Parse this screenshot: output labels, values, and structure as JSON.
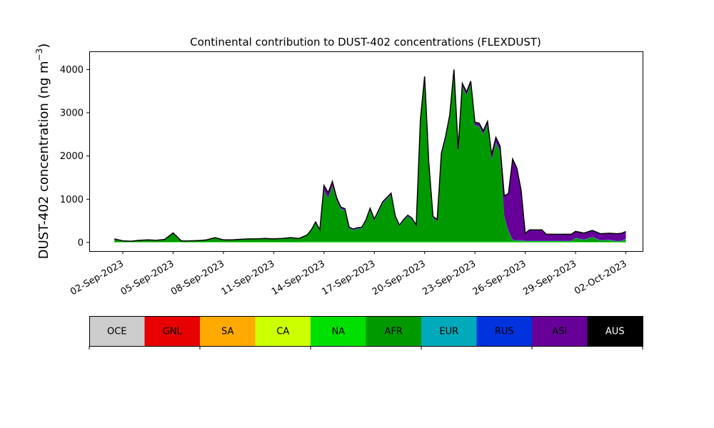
{
  "chart_data": {
    "type": "area",
    "stacked": true,
    "title": "Continental contribution to DUST-402 concentrations (FLEXDUST)",
    "ylabel_main": "DUST-402 concentration (ng m",
    "ylabel_sup": "−3",
    "ylabel_close": ")",
    "xlim": [
      "2023-08-31",
      "2023-10-03"
    ],
    "ylim": [
      -200,
      4420
    ],
    "yticks": [
      0,
      1000,
      2000,
      3000,
      4000
    ],
    "xtick_labels": [
      "02-Sep-2023",
      "05-Sep-2023",
      "08-Sep-2023",
      "11-Sep-2023",
      "14-Sep-2023",
      "17-Sep-2023",
      "20-Sep-2023",
      "23-Sep-2023",
      "26-Sep-2023",
      "29-Sep-2023",
      "02-Oct-2023"
    ],
    "xtick_dates": [
      "2023-09-02",
      "2023-09-05",
      "2023-09-08",
      "2023-09-11",
      "2023-09-14",
      "2023-09-17",
      "2023-09-20",
      "2023-09-23",
      "2023-09-26",
      "2023-09-29",
      "2023-10-02"
    ],
    "x": [
      "2023-09-01 12:00",
      "2023-09-02 00:00",
      "2023-09-02 12:00",
      "2023-09-03 00:00",
      "2023-09-03 12:00",
      "2023-09-04 00:00",
      "2023-09-04 12:00",
      "2023-09-05 00:00",
      "2023-09-05 12:00",
      "2023-09-06 00:00",
      "2023-09-06 09:00",
      "2023-09-06 18:00",
      "2023-09-07 00:00",
      "2023-09-07 12:00",
      "2023-09-08 00:00",
      "2023-09-08 12:00",
      "2023-09-09 00:00",
      "2023-09-09 12:00",
      "2023-09-10 00:00",
      "2023-09-10 12:00",
      "2023-09-11 00:00",
      "2023-09-11 12:00",
      "2023-09-12 00:00",
      "2023-09-12 12:00",
      "2023-09-13 00:00",
      "2023-09-13 06:00",
      "2023-09-13 12:00",
      "2023-09-13 18:00",
      "2023-09-14 00:00",
      "2023-09-14 06:00",
      "2023-09-14 12:00",
      "2023-09-14 18:00",
      "2023-09-15 00:00",
      "2023-09-15 06:00",
      "2023-09-15 12:00",
      "2023-09-15 18:00",
      "2023-09-16 00:00",
      "2023-09-16 06:00",
      "2023-09-16 12:00",
      "2023-09-16 18:00",
      "2023-09-17 00:00",
      "2023-09-17 12:00",
      "2023-09-18 00:00",
      "2023-09-18 06:00",
      "2023-09-18 12:00",
      "2023-09-18 18:00",
      "2023-09-19 00:00",
      "2023-09-19 06:00",
      "2023-09-19 12:00",
      "2023-09-19 18:00",
      "2023-09-20 00:00",
      "2023-09-20 06:00",
      "2023-09-20 12:00",
      "2023-09-20 18:00",
      "2023-09-21 00:00",
      "2023-09-21 06:00",
      "2023-09-21 12:00",
      "2023-09-21 18:00",
      "2023-09-22 00:00",
      "2023-09-22 06:00",
      "2023-09-22 12:00",
      "2023-09-22 18:00",
      "2023-09-23 00:00",
      "2023-09-23 06:00",
      "2023-09-23 12:00",
      "2023-09-23 18:00",
      "2023-09-24 00:00",
      "2023-09-24 06:00",
      "2023-09-24 12:00",
      "2023-09-24 18:00",
      "2023-09-25 00:00",
      "2023-09-25 06:00",
      "2023-09-25 12:00",
      "2023-09-25 18:00",
      "2023-09-26 00:00",
      "2023-09-26 06:00",
      "2023-09-26 12:00",
      "2023-09-26 18:00",
      "2023-09-27 00:00",
      "2023-09-27 06:00",
      "2023-09-27 12:00",
      "2023-09-27 18:00",
      "2023-09-28 00:00",
      "2023-09-28 06:00",
      "2023-09-28 12:00",
      "2023-09-28 18:00",
      "2023-09-29 00:00",
      "2023-09-29 12:00",
      "2023-09-30 00:00",
      "2023-09-30 12:00",
      "2023-10-01 00:00",
      "2023-10-01 12:00",
      "2023-10-01 18:00",
      "2023-10-02 00:00"
    ],
    "series": [
      {
        "name": "OCE",
        "color": "#cccccc",
        "values": [
          0,
          0,
          0,
          0,
          0,
          0,
          0,
          0,
          0,
          0,
          0,
          0,
          0,
          0,
          0,
          0,
          0,
          0,
          0,
          0,
          0,
          0,
          0,
          0,
          0,
          0,
          0,
          0,
          0,
          0,
          0,
          0,
          0,
          0,
          0,
          0,
          0,
          0,
          0,
          0,
          0,
          0,
          0,
          0,
          0,
          0,
          0,
          0,
          0,
          0,
          0,
          0,
          0,
          0,
          0,
          0,
          0,
          0,
          0,
          0,
          0,
          0,
          0,
          0,
          0,
          0,
          0,
          0,
          0,
          0,
          0,
          0,
          0,
          0,
          0,
          0,
          0,
          0,
          0,
          0,
          0,
          0,
          0,
          0,
          0,
          0,
          0,
          0,
          0,
          0,
          0,
          0,
          0,
          0
        ]
      },
      {
        "name": "GNL",
        "color": "#e60000",
        "values": [
          0,
          0,
          0,
          0,
          0,
          0,
          0,
          0,
          0,
          0,
          0,
          0,
          0,
          0,
          0,
          0,
          0,
          0,
          0,
          0,
          0,
          0,
          0,
          0,
          0,
          0,
          0,
          0,
          0,
          0,
          0,
          0,
          0,
          0,
          0,
          0,
          0,
          0,
          0,
          0,
          0,
          0,
          0,
          0,
          0,
          0,
          0,
          0,
          0,
          0,
          0,
          0,
          0,
          0,
          0,
          0,
          0,
          0,
          0,
          0,
          0,
          0,
          0,
          0,
          0,
          0,
          0,
          0,
          0,
          0,
          0,
          0,
          0,
          0,
          0,
          0,
          0,
          0,
          0,
          0,
          0,
          0,
          0,
          0,
          0,
          0,
          0,
          0,
          0,
          0,
          0,
          0,
          0,
          0
        ]
      },
      {
        "name": "SA",
        "color": "#ffaa00",
        "values": [
          0,
          0,
          0,
          0,
          0,
          0,
          0,
          0,
          0,
          0,
          0,
          0,
          0,
          0,
          0,
          0,
          0,
          0,
          0,
          0,
          0,
          0,
          0,
          0,
          0,
          0,
          0,
          0,
          0,
          0,
          0,
          0,
          0,
          0,
          0,
          0,
          0,
          0,
          0,
          0,
          0,
          0,
          0,
          0,
          0,
          0,
          0,
          0,
          0,
          0,
          0,
          0,
          0,
          0,
          0,
          0,
          0,
          0,
          0,
          0,
          0,
          0,
          0,
          0,
          0,
          0,
          0,
          0,
          0,
          0,
          0,
          0,
          0,
          0,
          0,
          0,
          0,
          0,
          0,
          0,
          0,
          0,
          0,
          0,
          0,
          0,
          0,
          0,
          0,
          0,
          0,
          0,
          0,
          0
        ]
      },
      {
        "name": "CA",
        "color": "#ccff00",
        "values": [
          3,
          3,
          3,
          3,
          3,
          3,
          3,
          3,
          3,
          3,
          3,
          3,
          3,
          3,
          3,
          3,
          3,
          3,
          3,
          3,
          3,
          3,
          3,
          3,
          3,
          3,
          3,
          3,
          3,
          3,
          3,
          3,
          3,
          3,
          3,
          3,
          3,
          3,
          3,
          3,
          3,
          3,
          3,
          3,
          3,
          3,
          3,
          3,
          3,
          3,
          3,
          3,
          3,
          3,
          3,
          3,
          3,
          3,
          3,
          3,
          3,
          3,
          3,
          3,
          3,
          3,
          3,
          3,
          3,
          3,
          3,
          3,
          3,
          3,
          3,
          3,
          3,
          3,
          3,
          3,
          3,
          3,
          3,
          3,
          3,
          3,
          3,
          3,
          3,
          3,
          3,
          3,
          3,
          3
        ]
      },
      {
        "name": "NA",
        "color": "#00e000",
        "values": [
          12,
          10,
          8,
          10,
          10,
          10,
          10,
          10,
          10,
          12,
          12,
          10,
          10,
          10,
          10,
          10,
          12,
          12,
          12,
          12,
          12,
          12,
          12,
          12,
          15,
          15,
          15,
          15,
          15,
          15,
          15,
          15,
          15,
          15,
          15,
          15,
          15,
          15,
          15,
          15,
          15,
          15,
          15,
          15,
          15,
          15,
          15,
          15,
          15,
          15,
          15,
          15,
          15,
          15,
          15,
          15,
          15,
          15,
          15,
          15,
          15,
          15,
          15,
          15,
          15,
          15,
          15,
          15,
          15,
          15,
          15,
          15,
          15,
          15,
          15,
          15,
          15,
          15,
          15,
          15,
          15,
          15,
          15,
          15,
          15,
          15,
          12,
          12,
          12,
          12,
          12,
          12,
          12,
          12
        ]
      },
      {
        "name": "AFR",
        "color": "#009900",
        "values": [
          55,
          15,
          7,
          27,
          37,
          27,
          47,
          197,
          12,
          12,
          17,
          27,
          37,
          87,
          37,
          37,
          47,
          57,
          57,
          67,
          57,
          67,
          87,
          67,
          147,
          267,
          427,
          242,
          1162,
          1002,
          1282,
          952,
          752,
          722,
          302,
          262,
          292,
          302,
          462,
          732,
          482,
          882,
          1082,
          552,
          352,
          482,
          582,
          512,
          352,
          2782,
          3782,
          1782,
          542,
          472,
          1982,
          2352,
          2852,
          3902,
          2082,
          3582,
          3382,
          3632,
          2682,
          2662,
          2482,
          2702,
          1882,
          2282,
          2082,
          582,
          232,
          32,
          22,
          22,
          12,
          12,
          12,
          12,
          12,
          12,
          12,
          12,
          12,
          12,
          12,
          12,
          82,
          42,
          102,
          27,
          37,
          7,
          17,
          57
        ]
      },
      {
        "name": "EUR",
        "color": "#00aabb",
        "values": [
          5,
          5,
          5,
          5,
          5,
          5,
          5,
          5,
          5,
          5,
          5,
          5,
          5,
          5,
          5,
          5,
          5,
          5,
          5,
          5,
          5,
          5,
          5,
          5,
          5,
          5,
          5,
          5,
          5,
          5,
          5,
          5,
          5,
          5,
          5,
          5,
          5,
          5,
          5,
          5,
          5,
          5,
          5,
          5,
          5,
          5,
          5,
          5,
          5,
          5,
          5,
          5,
          5,
          5,
          5,
          5,
          5,
          5,
          5,
          5,
          5,
          5,
          5,
          5,
          5,
          5,
          5,
          5,
          5,
          5,
          5,
          5,
          5,
          5,
          5,
          5,
          5,
          5,
          5,
          5,
          5,
          5,
          5,
          5,
          5,
          5,
          5,
          5,
          5,
          5,
          5,
          5,
          5,
          5
        ]
      },
      {
        "name": "RUS",
        "color": "#0033dd",
        "values": [
          5,
          5,
          5,
          5,
          5,
          5,
          5,
          5,
          5,
          5,
          5,
          5,
          5,
          5,
          5,
          5,
          5,
          5,
          5,
          5,
          5,
          5,
          5,
          5,
          5,
          5,
          5,
          5,
          5,
          5,
          5,
          5,
          5,
          5,
          5,
          5,
          5,
          5,
          5,
          5,
          5,
          5,
          5,
          5,
          5,
          5,
          5,
          5,
          5,
          5,
          5,
          5,
          5,
          5,
          5,
          5,
          5,
          5,
          5,
          5,
          5,
          5,
          5,
          5,
          5,
          5,
          5,
          5,
          5,
          5,
          5,
          5,
          5,
          5,
          5,
          5,
          5,
          5,
          5,
          5,
          5,
          5,
          5,
          5,
          5,
          5,
          5,
          5,
          5,
          5,
          5,
          5,
          5,
          5
        ]
      },
      {
        "name": "ASI",
        "color": "#660099",
        "values": [
          0,
          0,
          0,
          0,
          0,
          0,
          0,
          0,
          0,
          0,
          0,
          0,
          0,
          0,
          0,
          0,
          0,
          0,
          0,
          0,
          0,
          0,
          0,
          0,
          0,
          0,
          20,
          20,
          130,
          120,
          100,
          60,
          40,
          30,
          20,
          20,
          20,
          20,
          30,
          30,
          30,
          30,
          30,
          30,
          20,
          20,
          20,
          20,
          20,
          30,
          30,
          30,
          30,
          30,
          50,
          70,
          70,
          70,
          50,
          70,
          70,
          70,
          70,
          70,
          70,
          70,
          120,
          120,
          120,
          470,
          870,
          1870,
          1670,
          1170,
          170,
          250,
          250,
          250,
          250,
          150,
          150,
          150,
          150,
          150,
          150,
          150,
          150,
          150,
          150,
          150,
          150,
          170,
          170,
          170
        ]
      },
      {
        "name": "AUS",
        "color": "#000000",
        "values": [
          0,
          0,
          0,
          0,
          0,
          0,
          0,
          0,
          0,
          0,
          0,
          0,
          0,
          0,
          0,
          0,
          0,
          0,
          0,
          0,
          0,
          0,
          0,
          0,
          0,
          0,
          0,
          0,
          0,
          0,
          0,
          0,
          0,
          0,
          0,
          0,
          0,
          0,
          0,
          0,
          0,
          0,
          0,
          0,
          0,
          0,
          0,
          0,
          0,
          0,
          0,
          0,
          0,
          0,
          0,
          0,
          0,
          0,
          0,
          0,
          0,
          0,
          0,
          0,
          0,
          0,
          0,
          0,
          0,
          0,
          0,
          0,
          0,
          0,
          0,
          0,
          0,
          0,
          0,
          0,
          0,
          0,
          0,
          0,
          0,
          0,
          0,
          0,
          0,
          0,
          0,
          0,
          0,
          0
        ]
      }
    ],
    "legend": [
      "OCE",
      "GNL",
      "SA",
      "CA",
      "NA",
      "AFR",
      "EUR",
      "RUS",
      "ASI",
      "AUS"
    ],
    "legend_text_colors": [
      "#000000",
      "#000000",
      "#000000",
      "#000000",
      "#000000",
      "#000000",
      "#000000",
      "#000000",
      "#000000",
      "#ffffff"
    ],
    "legend_placement": "bottom colorbar",
    "grid": false
  }
}
